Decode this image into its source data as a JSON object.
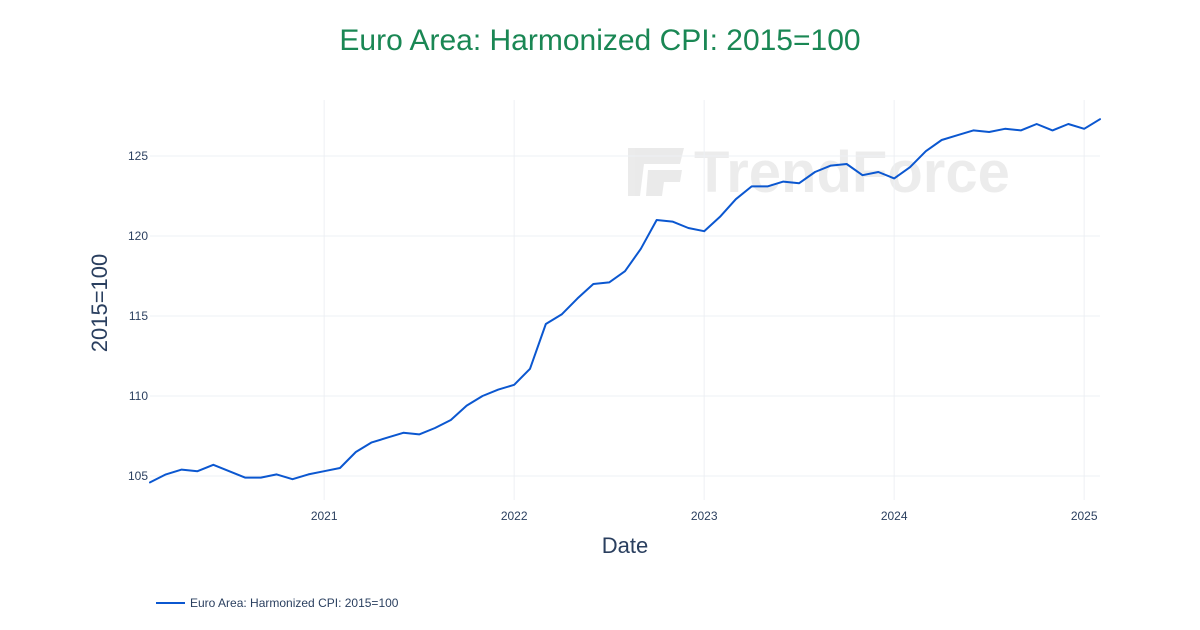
{
  "colors": {
    "title": "#1a8754",
    "line": "#0b57d0",
    "axis_text": "#2a3f5f",
    "grid": "#eef0f4"
  },
  "watermark": {
    "text": "TrendForce",
    "icon": "trendforce-logo-icon"
  },
  "chart_data": {
    "type": "line",
    "title": "Euro Area: Harmonized CPI: 2015=100",
    "xlabel": "Date",
    "ylabel": "2015=100",
    "x_range": [
      "2020-02",
      "2025-02"
    ],
    "y_range": [
      103.5,
      128.5
    ],
    "x_ticks": [
      "2021",
      "2022",
      "2023",
      "2024",
      "2025"
    ],
    "y_ticks": [
      105,
      110,
      115,
      120,
      125
    ],
    "grid": true,
    "legend_position": "bottom-left",
    "series": [
      {
        "name": "Euro Area: Harmonized CPI: 2015=100",
        "x": [
          "2020-02",
          "2020-03",
          "2020-04",
          "2020-05",
          "2020-06",
          "2020-07",
          "2020-08",
          "2020-09",
          "2020-10",
          "2020-11",
          "2020-12",
          "2021-01",
          "2021-02",
          "2021-03",
          "2021-04",
          "2021-05",
          "2021-06",
          "2021-07",
          "2021-08",
          "2021-09",
          "2021-10",
          "2021-11",
          "2021-12",
          "2022-01",
          "2022-02",
          "2022-03",
          "2022-04",
          "2022-05",
          "2022-06",
          "2022-07",
          "2022-08",
          "2022-09",
          "2022-10",
          "2022-11",
          "2022-12",
          "2023-01",
          "2023-02",
          "2023-03",
          "2023-04",
          "2023-05",
          "2023-06",
          "2023-07",
          "2023-08",
          "2023-09",
          "2023-10",
          "2023-11",
          "2023-12",
          "2024-01",
          "2024-02",
          "2024-03",
          "2024-04",
          "2024-05",
          "2024-06",
          "2024-07",
          "2024-08",
          "2024-09",
          "2024-10",
          "2024-11",
          "2024-12",
          "2025-01",
          "2025-02"
        ],
        "y": [
          104.6,
          105.1,
          105.4,
          105.3,
          105.7,
          105.3,
          104.9,
          104.9,
          105.1,
          104.8,
          105.1,
          105.3,
          105.5,
          106.5,
          107.1,
          107.4,
          107.7,
          107.6,
          108.0,
          108.5,
          109.4,
          110.0,
          110.4,
          110.7,
          111.7,
          114.5,
          115.1,
          116.1,
          117.0,
          117.1,
          117.8,
          119.2,
          121.0,
          120.9,
          120.5,
          120.3,
          121.2,
          122.3,
          123.1,
          123.1,
          123.4,
          123.3,
          124.0,
          124.4,
          124.5,
          123.8,
          124.0,
          123.6,
          124.3,
          125.3,
          126.0,
          126.3,
          126.6,
          126.5,
          126.7,
          126.6,
          127.0,
          126.6,
          127.0,
          126.7,
          127.3
        ]
      }
    ]
  }
}
